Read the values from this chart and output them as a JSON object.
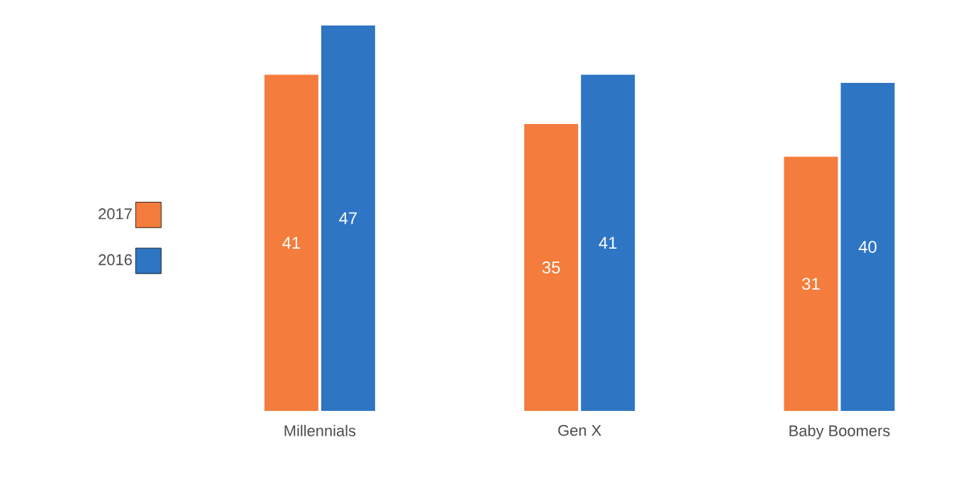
{
  "chart_data": {
    "type": "bar",
    "categories": [
      "Millennials",
      "Gen X",
      "Baby Boomers"
    ],
    "series": [
      {
        "name": "2017",
        "color": "#f47c3c",
        "values": [
          41,
          35,
          31
        ]
      },
      {
        "name": "2016",
        "color": "#2e75c4",
        "values": [
          47,
          41,
          40
        ]
      }
    ],
    "data_labels": true,
    "legend": "left",
    "grid": false
  }
}
